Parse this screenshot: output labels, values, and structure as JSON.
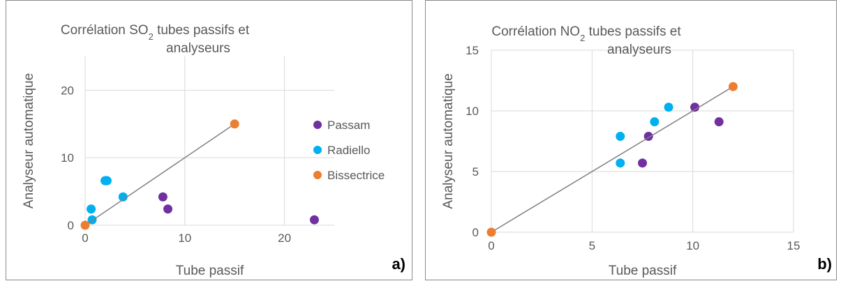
{
  "chart_data": [
    {
      "type": "scatter",
      "panel_label": "a)",
      "title_prefix": "Corrélation SO",
      "title_subscript": "2",
      "title_suffix": " tubes passifs et",
      "title_line2": "analyseurs",
      "xlabel": "Tube passif",
      "ylabel": "Analyseur automatique",
      "xlim": [
        0,
        25
      ],
      "ylim": [
        0,
        25
      ],
      "x_ticks": [
        0,
        10,
        20
      ],
      "y_ticks": [
        0,
        10,
        20
      ],
      "grid": true,
      "legend_position": "right",
      "series": [
        {
          "name": "Passam",
          "color": "#7030a0",
          "points": [
            [
              2.1,
              6.6
            ],
            [
              7.8,
              4.2
            ],
            [
              8.3,
              2.4
            ],
            [
              23.0,
              0.8
            ]
          ]
        },
        {
          "name": "Radiello",
          "color": "#00b0f0",
          "points": [
            [
              0.6,
              2.4
            ],
            [
              0.7,
              0.8
            ],
            [
              2.0,
              6.6
            ],
            [
              2.2,
              6.6
            ],
            [
              3.8,
              4.2
            ]
          ]
        },
        {
          "name": "Bissectrice",
          "color": "#ed7d31",
          "line": true,
          "points": [
            [
              0,
              0
            ],
            [
              15,
              15
            ]
          ]
        }
      ]
    },
    {
      "type": "scatter",
      "panel_label": "b)",
      "title_prefix": "Corrélation NO",
      "title_subscript": "2",
      "title_suffix": " tubes passifs et",
      "title_line2": "analyseurs",
      "xlabel": "Tube passif",
      "ylabel": "Analyseur automatique",
      "xlim": [
        0,
        15
      ],
      "ylim": [
        0,
        15
      ],
      "x_ticks": [
        0,
        5,
        10,
        15
      ],
      "y_ticks": [
        0,
        5,
        10,
        15
      ],
      "grid": true,
      "legend_position": "none",
      "series": [
        {
          "name": "Passam",
          "color": "#7030a0",
          "points": [
            [
              7.5,
              5.7
            ],
            [
              7.8,
              7.9
            ],
            [
              10.1,
              10.3
            ],
            [
              11.3,
              9.1
            ]
          ]
        },
        {
          "name": "Radiello",
          "color": "#00b0f0",
          "points": [
            [
              6.4,
              7.9
            ],
            [
              6.4,
              5.7
            ],
            [
              8.1,
              9.1
            ],
            [
              8.8,
              10.3
            ]
          ]
        },
        {
          "name": "Bissectrice",
          "color": "#ed7d31",
          "line": true,
          "points": [
            [
              0,
              0
            ],
            [
              12,
              12
            ]
          ]
        }
      ]
    }
  ]
}
